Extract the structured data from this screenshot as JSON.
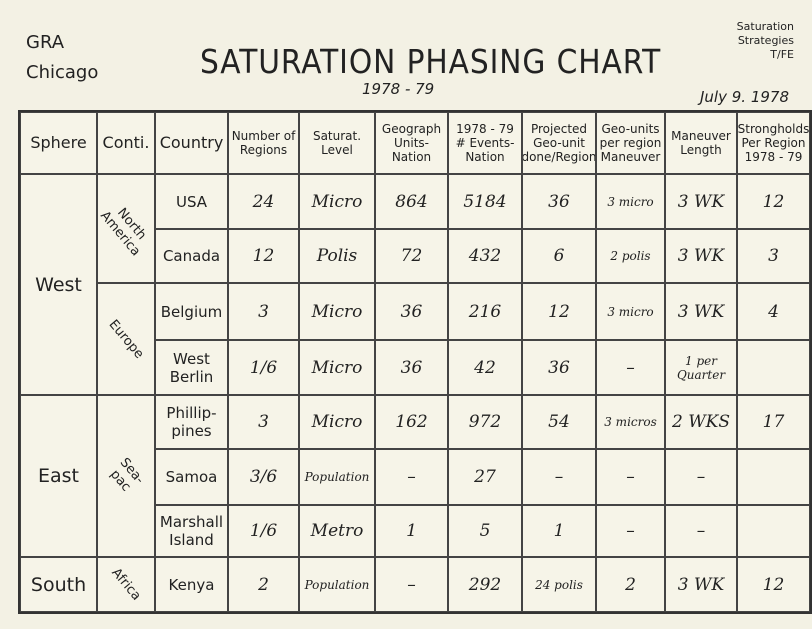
{
  "header": {
    "org": [
      "GRA",
      "Chicago"
    ],
    "title": "SATURATION PHASING CHART",
    "years": "1978 - 79",
    "corner": [
      "Saturation",
      "Strategies",
      "T/FE"
    ],
    "date": "July 9. 1978"
  },
  "table": {
    "columns": [
      "Sphere",
      "Conti.",
      "Country",
      "Number of Regions",
      "Saturat. Level",
      "Geograph Units-Nation",
      "1978 - 79 # Events-Nation",
      "Projected Geo-unit done/Region",
      "Geo-units per region Maneuver",
      "Maneuver Length",
      "Strongholds Per Region 1978 - 79"
    ],
    "spheres": [
      {
        "label": "West",
        "continents": [
          {
            "label": "North America",
            "rows": [
              {
                "country": "USA",
                "cells": [
                  "24",
                  "Micro",
                  "864",
                  "5184",
                  "36",
                  "3 micro",
                  "3 WK",
                  "12"
                ]
              },
              {
                "country": "Canada",
                "cells": [
                  "12",
                  "Polis",
                  "72",
                  "432",
                  "6",
                  "2 polis",
                  "3 WK",
                  "3"
                ]
              }
            ]
          },
          {
            "label": "Europe",
            "rows": [
              {
                "country": "Belgium",
                "cells": [
                  "3",
                  "Micro",
                  "36",
                  "216",
                  "12",
                  "3 micro",
                  "3 WK",
                  "4"
                ]
              },
              {
                "country": "West Berlin",
                "cells": [
                  "1/6",
                  "Micro",
                  "36",
                  "42",
                  "36",
                  "–",
                  "1 per Quarter",
                  null
                ]
              }
            ]
          }
        ]
      },
      {
        "label": "East",
        "continents": [
          {
            "label": "Sea-pac",
            "rows": [
              {
                "country": "Phillip-pines",
                "cells": [
                  "3",
                  "Micro",
                  "162",
                  "972",
                  "54",
                  "3 micros",
                  "2 WKS",
                  "17"
                ]
              },
              {
                "country": "Samoa",
                "cells": [
                  "3/6",
                  "Population",
                  "–",
                  "27",
                  "–",
                  "–",
                  "–",
                  null
                ]
              },
              {
                "country": "Marshall Island",
                "cells": [
                  "1/6",
                  "Metro",
                  "1",
                  "5",
                  "1",
                  "–",
                  "–",
                  null
                ]
              }
            ]
          }
        ]
      },
      {
        "label": "South",
        "continents": [
          {
            "label": "Africa",
            "rows": [
              {
                "country": "Kenya",
                "cells": [
                  "2",
                  "Population",
                  "–",
                  "292",
                  "24 polis",
                  "2",
                  "3 WK",
                  "12"
                ]
              }
            ]
          }
        ]
      }
    ]
  }
}
